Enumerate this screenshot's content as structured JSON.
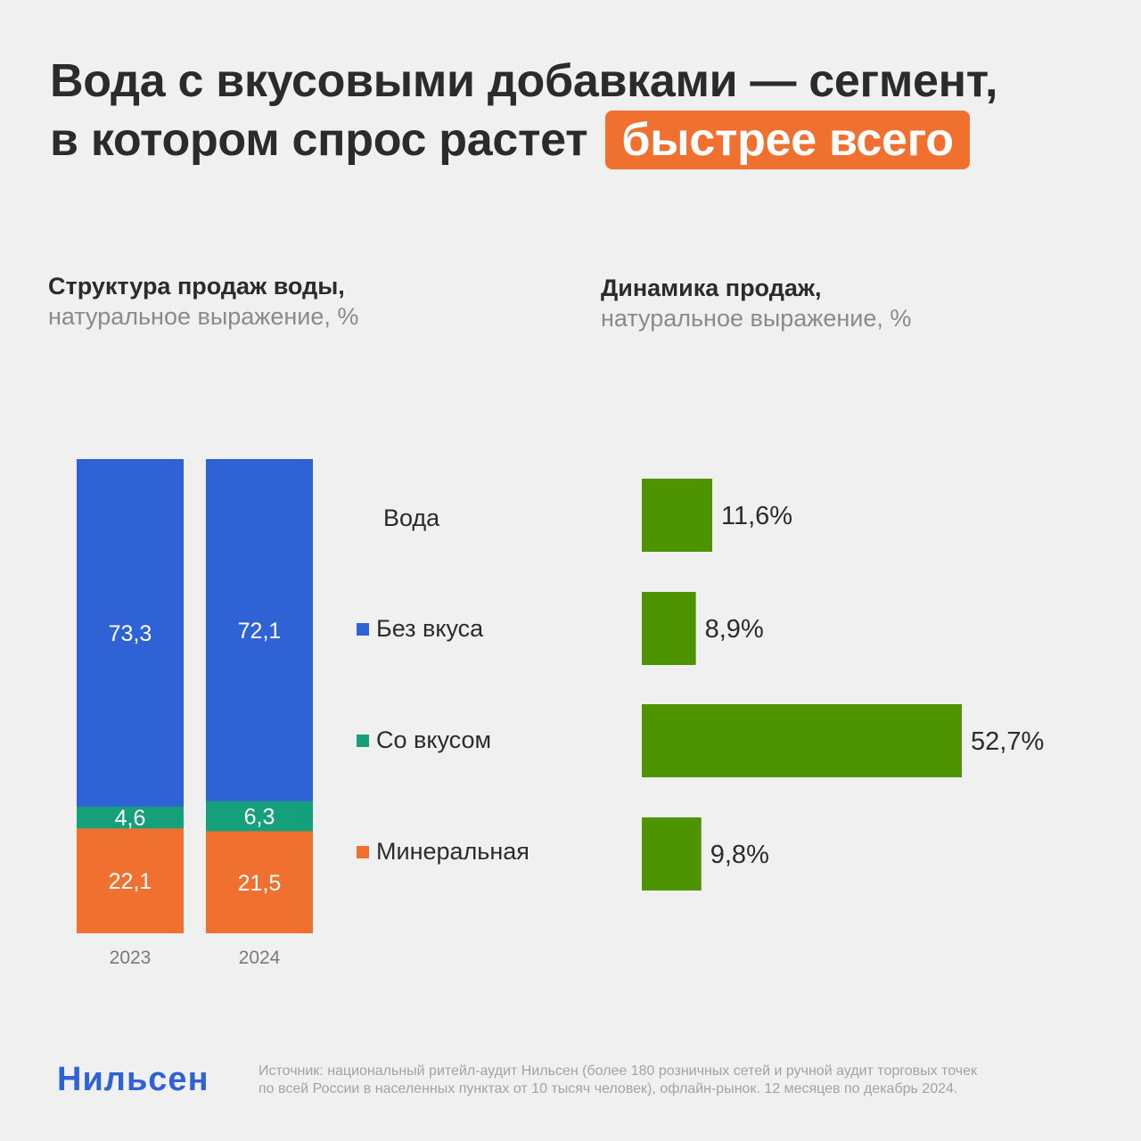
{
  "header": {
    "title_line1": "Вода с вкусовыми добавками — сегмент,",
    "title_line2": "в котором спрос растет",
    "title_highlight": "быстрее всего"
  },
  "left_panel": {
    "title": "Структура продаж воды,",
    "subtitle": "натуральное выражение, %"
  },
  "right_panel": {
    "title": "Динамика продаж,",
    "subtitle": "натуральное выражение, %"
  },
  "legend": {
    "heading": "Вода",
    "items": [
      {
        "label": "Без вкуса",
        "color": "#2f62d4"
      },
      {
        "label": "Со вкусом",
        "color": "#16a07a"
      },
      {
        "label": "Минеральная",
        "color": "#f07030"
      }
    ]
  },
  "chart_data": [
    {
      "type": "bar",
      "stacked": true,
      "orientation": "vertical",
      "categories": [
        "2023",
        "2024"
      ],
      "series": [
        {
          "name": "Минеральная",
          "color": "#f07030",
          "values": [
            22.1,
            21.5
          ],
          "labels": [
            "22,1",
            "21,5"
          ]
        },
        {
          "name": "Со вкусом",
          "color": "#16a07a",
          "values": [
            4.6,
            6.3
          ],
          "labels": [
            "4,6",
            "6,3"
          ]
        },
        {
          "name": "Без вкуса",
          "color": "#2f62d4",
          "values": [
            73.3,
            72.1
          ],
          "labels": [
            "73,3",
            "72,1"
          ]
        }
      ],
      "title": "Структура продаж воды,",
      "subtitle": "натуральное выражение, %"
    },
    {
      "type": "bar",
      "orientation": "horizontal",
      "categories": [
        "Вода",
        "Без вкуса",
        "Со вкусом",
        "Минеральная"
      ],
      "values": [
        11.6,
        8.9,
        52.7,
        9.8
      ],
      "labels": [
        "11,6%",
        "8,9%",
        "52,7%",
        "9,8%"
      ],
      "color": "#4e9400",
      "title": "Динамика продаж,",
      "subtitle": "натуральное выражение, %"
    }
  ],
  "footer": {
    "logo": "Нильсен",
    "source_line1": "Источник: национальный ритейл-аудит Нильсен (более 180 розничных сетей и ручной аудит торговых точек",
    "source_line2": "по всей России в населенных пунктах от 10 тысяч человек), офлайн-рынок. 12 месяцев по декабрь 2024."
  }
}
